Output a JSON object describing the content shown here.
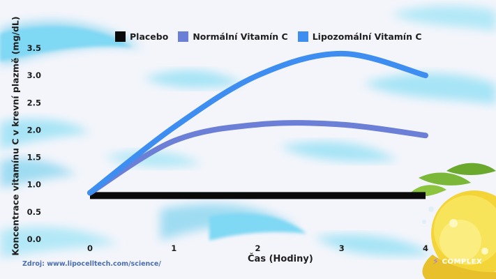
{
  "chart_data": {
    "type": "line",
    "x": [
      0,
      1,
      2,
      3,
      4
    ],
    "xlabel": "Čas (Hodiny)",
    "ylabel": "Koncentrace vitamínu C v krevní plazmě  (mg/dL)",
    "ylim": [
      0,
      3.5
    ],
    "xlim": [
      0,
      4
    ],
    "yticks": [
      "0.0",
      "0.5",
      "1.0",
      "1.5",
      "2.0",
      "2.5",
      "3.0",
      "3.5"
    ],
    "xticks": [
      "0",
      "1",
      "2",
      "3",
      "4"
    ],
    "legend_position": "top",
    "grid": false,
    "series": [
      {
        "name": "Placebo",
        "color": "#0a0a0a",
        "values": [
          0.8,
          0.8,
          0.8,
          0.8,
          0.8
        ]
      },
      {
        "name": "Normální Vitamín C",
        "color": "#6b7fd6",
        "values": [
          0.85,
          1.8,
          2.1,
          2.1,
          1.9
        ]
      },
      {
        "name": "Lipozomální Vitamín C",
        "color": "#3d8ef0",
        "values": [
          0.85,
          2.05,
          3.0,
          3.4,
          3.0
        ]
      }
    ]
  },
  "source": "Zdroj: www.lipocelltech.com/science/",
  "brand": "COMPLEX"
}
